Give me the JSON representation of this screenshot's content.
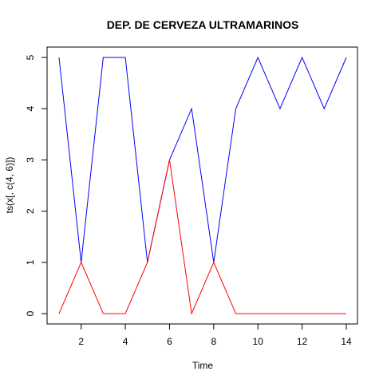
{
  "chart_data": {
    "type": "line",
    "title": "DEP. DE CERVEZA ULTRAMARINOS",
    "xlabel": "Time",
    "ylabel": "ts(x[, c(4, 6)])",
    "x": [
      1,
      2,
      3,
      4,
      5,
      6,
      7,
      8,
      9,
      10,
      11,
      12,
      13,
      14
    ],
    "xlim": [
      1,
      14
    ],
    "ylim": [
      0,
      5
    ],
    "x_ticks": [
      2,
      4,
      6,
      8,
      10,
      12,
      14
    ],
    "y_ticks": [
      0,
      1,
      2,
      3,
      4,
      5
    ],
    "grid": false,
    "series": [
      {
        "color": "#0000ff",
        "values": [
          5,
          1,
          5,
          5,
          1,
          3,
          4,
          1,
          4,
          5,
          4,
          5,
          4,
          5
        ]
      },
      {
        "color": "#ff0000",
        "values": [
          0,
          1,
          0,
          0,
          1,
          3,
          0,
          1,
          0,
          0,
          0,
          0,
          0,
          0
        ]
      }
    ]
  }
}
